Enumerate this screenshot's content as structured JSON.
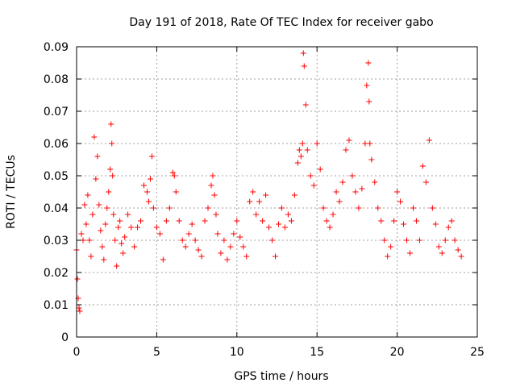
{
  "chart_data": {
    "type": "scatter",
    "title": "Day 191 of 2018, Rate Of TEC Index for receiver gabo",
    "xlabel": "GPS time / hours",
    "ylabel": "ROTI / TECUs",
    "xlim": [
      0,
      25
    ],
    "ylim": [
      0,
      0.09
    ],
    "x_ticks": [
      0,
      5,
      10,
      15,
      20,
      25
    ],
    "y_ticks": [
      0,
      0.01,
      0.02,
      0.03,
      0.04,
      0.05,
      0.06,
      0.07,
      0.08,
      0.09
    ],
    "x_tick_labels": [
      "0",
      "5",
      "10",
      "15",
      "20",
      "25"
    ],
    "y_tick_labels": [
      "0",
      "0.01",
      "0.02",
      "0.03",
      "0.04",
      "0.05",
      "0.06",
      "0.07",
      "0.08",
      "0.09"
    ],
    "grid": true,
    "marker": "+",
    "color": "#ff0000",
    "series": [
      {
        "x": [
          0.0,
          0.05,
          0.1,
          0.15,
          0.2,
          0.3,
          0.4,
          0.5,
          0.6,
          0.7,
          0.8,
          0.9,
          1.0,
          1.1,
          1.2,
          1.3,
          1.4,
          1.5,
          1.6,
          1.7,
          1.8,
          1.9,
          2.0,
          2.1,
          2.15,
          2.2,
          2.25,
          2.3,
          2.4,
          2.5,
          2.6,
          2.7,
          2.8,
          2.9,
          3.0,
          3.2,
          3.4,
          3.6,
          3.8,
          4.0,
          4.2,
          4.4,
          4.5,
          4.6,
          4.7,
          4.8,
          5.0,
          5.2,
          5.4,
          5.6,
          5.8,
          6.0,
          6.1,
          6.2,
          6.4,
          6.6,
          6.8,
          7.0,
          7.2,
          7.4,
          7.6,
          7.8,
          8.0,
          8.2,
          8.4,
          8.5,
          8.6,
          8.7,
          8.8,
          9.0,
          9.2,
          9.4,
          9.6,
          9.8,
          10.0,
          10.2,
          10.4,
          10.6,
          10.8,
          11.0,
          11.2,
          11.4,
          11.6,
          11.8,
          12.0,
          12.2,
          12.4,
          12.6,
          12.8,
          13.0,
          13.2,
          13.4,
          13.6,
          13.8,
          13.9,
          14.0,
          14.1,
          14.15,
          14.2,
          14.3,
          14.4,
          14.6,
          14.8,
          15.0,
          15.2,
          15.4,
          15.6,
          15.8,
          16.0,
          16.2,
          16.4,
          16.6,
          16.8,
          17.0,
          17.2,
          17.4,
          17.6,
          17.8,
          18.0,
          18.1,
          18.2,
          18.25,
          18.3,
          18.4,
          18.6,
          18.8,
          19.0,
          19.2,
          19.4,
          19.6,
          19.8,
          20.0,
          20.2,
          20.4,
          20.6,
          20.8,
          21.0,
          21.2,
          21.4,
          21.6,
          21.8,
          22.0,
          22.2,
          22.4,
          22.6,
          22.8,
          23.0,
          23.2,
          23.4,
          23.6,
          23.8,
          24.0
        ],
        "y": [
          0.027,
          0.018,
          0.012,
          0.009,
          0.008,
          0.032,
          0.03,
          0.041,
          0.035,
          0.044,
          0.03,
          0.025,
          0.038,
          0.062,
          0.049,
          0.056,
          0.041,
          0.033,
          0.028,
          0.024,
          0.035,
          0.04,
          0.045,
          0.052,
          0.066,
          0.06,
          0.05,
          0.038,
          0.03,
          0.022,
          0.034,
          0.036,
          0.029,
          0.026,
          0.031,
          0.038,
          0.034,
          0.028,
          0.034,
          0.036,
          0.047,
          0.045,
          0.042,
          0.049,
          0.056,
          0.04,
          0.034,
          0.032,
          0.024,
          0.036,
          0.04,
          0.051,
          0.05,
          0.045,
          0.036,
          0.03,
          0.028,
          0.032,
          0.035,
          0.03,
          0.027,
          0.025,
          0.036,
          0.04,
          0.047,
          0.05,
          0.044,
          0.038,
          0.032,
          0.026,
          0.03,
          0.024,
          0.028,
          0.032,
          0.036,
          0.031,
          0.028,
          0.025,
          0.042,
          0.045,
          0.038,
          0.042,
          0.036,
          0.044,
          0.034,
          0.03,
          0.025,
          0.035,
          0.04,
          0.034,
          0.038,
          0.036,
          0.044,
          0.054,
          0.058,
          0.056,
          0.06,
          0.088,
          0.084,
          0.072,
          0.058,
          0.05,
          0.047,
          0.06,
          0.052,
          0.04,
          0.036,
          0.034,
          0.038,
          0.045,
          0.042,
          0.048,
          0.058,
          0.061,
          0.05,
          0.045,
          0.04,
          0.046,
          0.06,
          0.078,
          0.085,
          0.073,
          0.06,
          0.055,
          0.048,
          0.04,
          0.036,
          0.03,
          0.025,
          0.028,
          0.036,
          0.045,
          0.042,
          0.035,
          0.03,
          0.026,
          0.04,
          0.036,
          0.03,
          0.053,
          0.048,
          0.061,
          0.04,
          0.035,
          0.028,
          0.026,
          0.03,
          0.034,
          0.036,
          0.03,
          0.027,
          0.025
        ]
      }
    ]
  }
}
